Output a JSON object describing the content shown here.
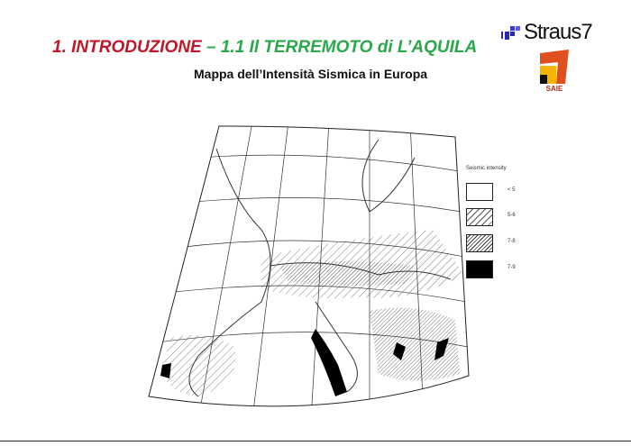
{
  "header": {
    "title_part1": "1. INTRODUZIONE",
    "title_part2": " – 1.1 Il TERREMOTO di L’AQUILA",
    "subtitle": "Mappa  dell’Intensità Sismica in Europa"
  },
  "logos": {
    "straus": "Straus7",
    "saie": "SAIE"
  },
  "legend": {
    "title": "Seismic intensity",
    "items": [
      {
        "label": "< 5",
        "pattern": "none"
      },
      {
        "label": "5-6",
        "pattern": "sparse-hatch"
      },
      {
        "label": "7-8",
        "pattern": "dense-hatch"
      },
      {
        "label": "7-9",
        "pattern": "solid-black"
      }
    ]
  },
  "colors": {
    "title_red": "#c0182a",
    "title_green": "#2aa84a",
    "saie_orange": "#e0501e",
    "saie_yellow": "#f5b400",
    "straus_blue": "#2a2aa8"
  }
}
